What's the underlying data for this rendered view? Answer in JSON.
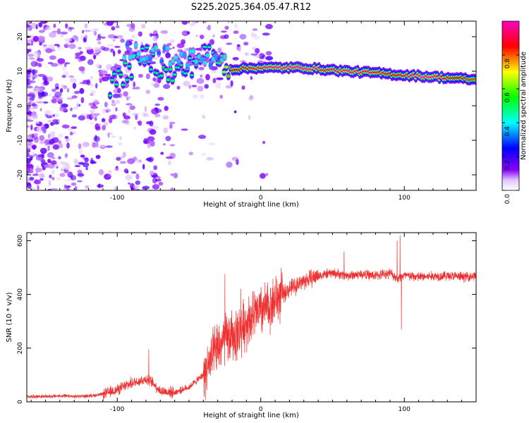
{
  "title": "S225.2025.364.05.47.R12",
  "chart_data": [
    {
      "type": "heatmap",
      "xlabel": "Height of straight line (km)",
      "ylabel": "Frequency (Hz)",
      "xlim": [
        -163,
        150
      ],
      "ylim": [
        -24.5,
        24.5
      ],
      "x_ticks": [
        -100,
        0,
        100
      ],
      "y_ticks": [
        -20,
        -10,
        0,
        10,
        20
      ],
      "colorbar": {
        "label": "Normalized spectral amplitude",
        "range": [
          0,
          1
        ],
        "ticks": [
          0.0,
          0.2,
          0.4,
          0.6,
          0.8
        ],
        "colors": [
          "#ffffff",
          "#8b00ff",
          "#0000ff",
          "#00ffff",
          "#00ff00",
          "#ffff00",
          "#ff0000",
          "#ff00c0"
        ]
      },
      "ridge": [
        {
          "x": -100,
          "freq": 7.5,
          "amp": 0.45
        },
        {
          "x": -90,
          "freq": 11,
          "amp": 0.45
        },
        {
          "x": -80,
          "freq": 15,
          "amp": 0.4
        },
        {
          "x": -65,
          "freq": 8.5,
          "amp": 0.5
        },
        {
          "x": -50,
          "freq": 11,
          "amp": 0.4
        },
        {
          "x": -40,
          "freq": 15,
          "amp": 0.4
        },
        {
          "x": -30,
          "freq": 13.5,
          "amp": 0.45
        },
        {
          "x": -20,
          "freq": 10.5,
          "amp": 0.8
        },
        {
          "x": -5,
          "freq": 11,
          "amp": 0.85
        },
        {
          "x": 10,
          "freq": 11,
          "amp": 0.9
        },
        {
          "x": 30,
          "freq": 11,
          "amp": 0.95
        },
        {
          "x": 45,
          "freq": 10.5,
          "amp": 0.85
        },
        {
          "x": 60,
          "freq": 10,
          "amp": 0.9
        },
        {
          "x": 80,
          "freq": 9.5,
          "amp": 0.85
        },
        {
          "x": 95,
          "freq": 9,
          "amp": 0.8
        },
        {
          "x": 115,
          "freq": 8.5,
          "amp": 0.95
        },
        {
          "x": 135,
          "freq": 8,
          "amp": 0.8
        },
        {
          "x": 150,
          "freq": 7.5,
          "amp": 0.75
        }
      ]
    },
    {
      "type": "line",
      "xlabel": "Height of straight line (km)",
      "ylabel": "SNR (10 * v/v)",
      "xlim": [
        -163,
        150
      ],
      "ylim": [
        0,
        630
      ],
      "x_ticks": [
        -100,
        0,
        100
      ],
      "y_ticks": [
        0,
        200,
        400,
        600
      ],
      "color": "#f03030",
      "series": [
        {
          "name": "SNR",
          "x": [
            -163,
            -150,
            -140,
            -130,
            -120,
            -110,
            -100,
            -90,
            -80,
            -75,
            -70,
            -60,
            -50,
            -40,
            -35,
            -30,
            -25,
            -20,
            -15,
            -10,
            -5,
            0,
            5,
            10,
            15,
            20,
            30,
            40,
            50,
            60,
            70,
            80,
            90,
            95,
            100,
            110,
            120,
            130,
            140,
            150
          ],
          "values": [
            20,
            20,
            22,
            20,
            22,
            28,
            45,
            70,
            85,
            70,
            40,
            35,
            55,
            100,
            150,
            200,
            230,
            240,
            260,
            300,
            320,
            340,
            350,
            380,
            400,
            420,
            450,
            470,
            480,
            470,
            475,
            470,
            480,
            460,
            470,
            465,
            468,
            470,
            465,
            470
          ]
        }
      ],
      "spikes": [
        {
          "x": -78,
          "value": 195
        },
        {
          "x": -25,
          "value": 475
        },
        {
          "x": -14,
          "value": 420
        },
        {
          "x": 15,
          "value": 460
        },
        {
          "x": 58,
          "value": 560
        },
        {
          "x": 95,
          "value": 600
        },
        {
          "x": 97,
          "value": 620
        },
        {
          "x": 98,
          "value": 270
        }
      ]
    }
  ]
}
